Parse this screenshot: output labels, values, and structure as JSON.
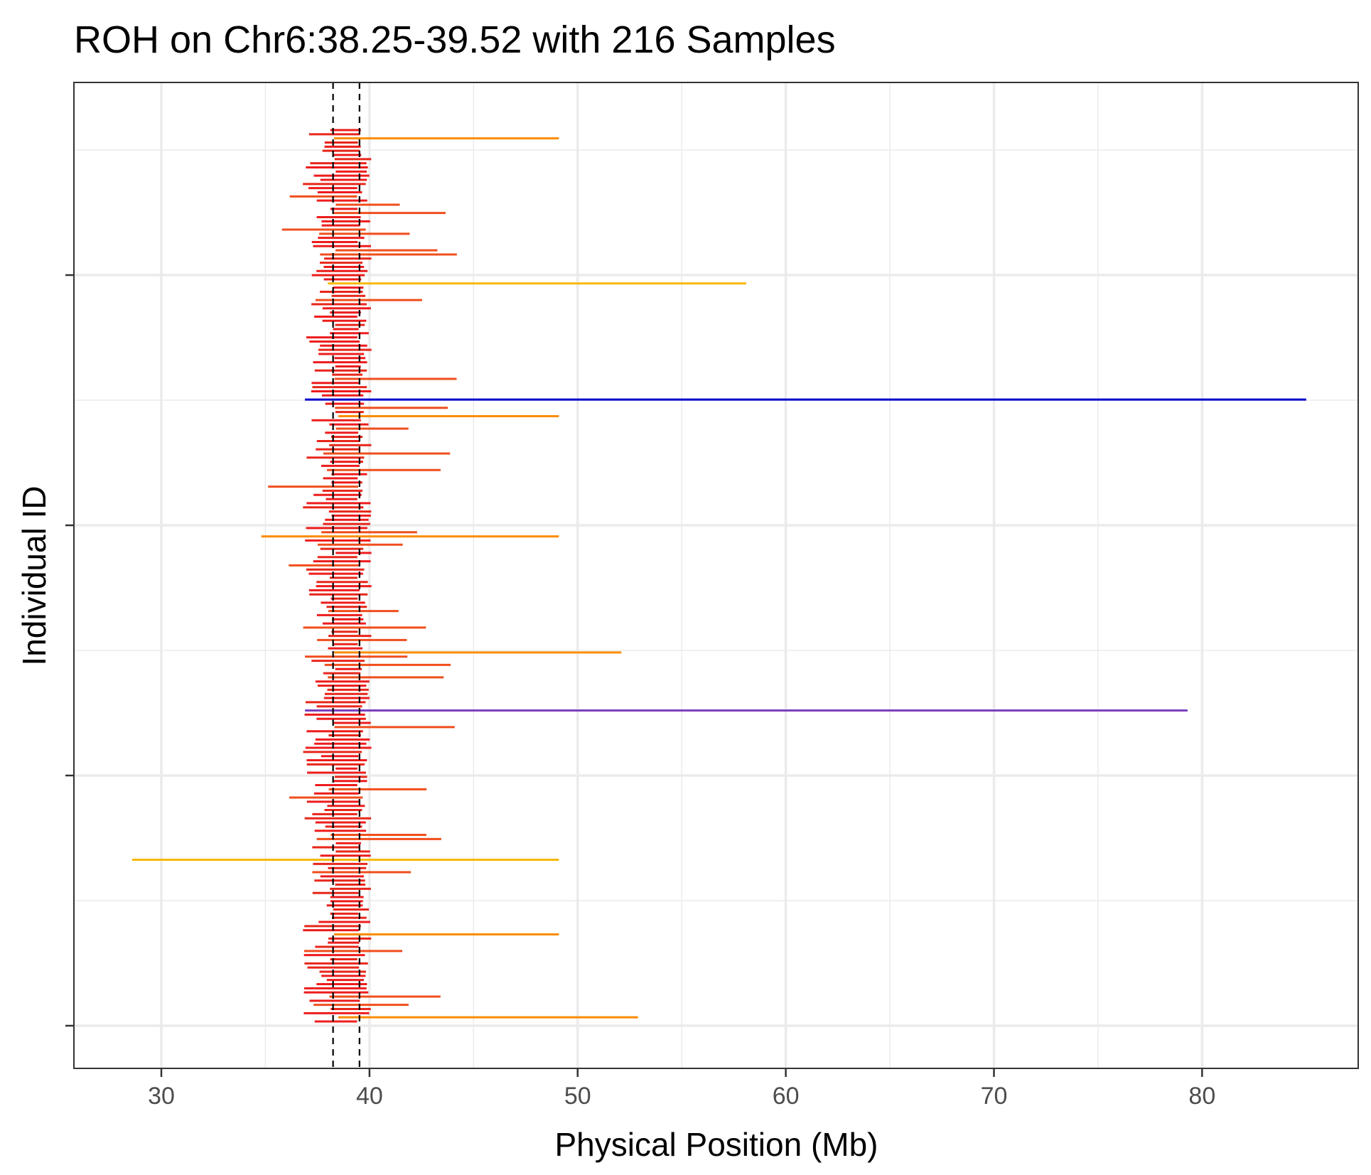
{
  "chart_data": {
    "type": "segment",
    "title": "ROH on Chr6:38.25-39.52 with 216 Samples",
    "xlabel": "Physical Position (Mb)",
    "ylabel": "Individual ID",
    "xlim": [
      25.8,
      87.5
    ],
    "x_ticks": [
      30,
      40,
      50,
      60,
      70,
      80
    ],
    "x_tick_labels": [
      "30",
      "40",
      "50",
      "60",
      "70",
      "80"
    ],
    "y_ticks_labeled": false,
    "n_samples": 216,
    "region": {
      "start": 38.25,
      "end": 39.52
    },
    "grid": true,
    "colors": {
      "background": "#ffffff",
      "grid": "#ebebeb",
      "border": "#333333",
      "region_line": "#000000",
      "roh_short": "#ee1c1c",
      "roh_mid": "#f04e1c",
      "roh_orange": "#fb8c00",
      "roh_long": "#f7b800",
      "roh_purple": "#7b3fbf",
      "roh_blue": "#0000cc"
    },
    "notable_segments": [
      {
        "start": 38.3,
        "end": 49.1,
        "color": "#fb8c00"
      },
      {
        "start": 38.0,
        "end": 58.1,
        "color": "#f7b800"
      },
      {
        "start": 36.9,
        "end": 85.0,
        "color": "#0000cc"
      },
      {
        "start": 38.5,
        "end": 49.1,
        "color": "#fb8c00"
      },
      {
        "start": 34.8,
        "end": 49.1,
        "color": "#fb8c00"
      },
      {
        "start": 38.3,
        "end": 52.1,
        "color": "#fb8c00"
      },
      {
        "start": 36.9,
        "end": 79.3,
        "color": "#7b3fbf"
      },
      {
        "start": 28.6,
        "end": 49.1,
        "color": "#f7b800"
      },
      {
        "start": 38.3,
        "end": 49.1,
        "color": "#fb8c00"
      },
      {
        "start": 40.0,
        "end": 49.1,
        "color": "#fb8c00"
      },
      {
        "start": 38.5,
        "end": 52.9,
        "color": "#fb8c00"
      }
    ]
  }
}
